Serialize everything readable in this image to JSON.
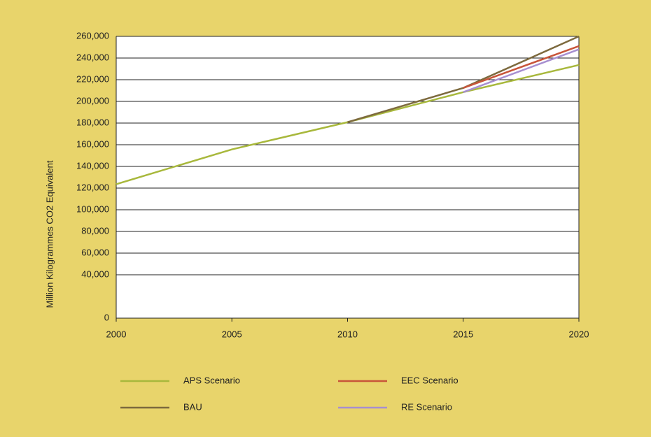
{
  "chart_data": {
    "type": "line",
    "y_label": "Million Kilogrammes CO2 Equivalent",
    "x": [
      2000,
      2005,
      2010,
      2015,
      2020
    ],
    "xlim": [
      2000,
      2020
    ],
    "xticks": [
      2000,
      2005,
      2010,
      2015,
      2020
    ],
    "ylim": [
      0,
      260000
    ],
    "yticks": [
      0,
      {
        "value": 40000,
        "label": "40,000"
      },
      {
        "value": 60000,
        "label": "60,000"
      },
      {
        "value": 80000,
        "label": "80,000"
      },
      {
        "value": 100000,
        "label": "100,000"
      },
      {
        "value": 120000,
        "label": "120,000"
      },
      {
        "value": 140000,
        "label": "140,000"
      },
      {
        "value": 160000,
        "label": "160,000"
      },
      {
        "value": 180000,
        "label": "180,000"
      },
      {
        "value": 200000,
        "label": "200,000"
      },
      {
        "value": 220000,
        "label": "220,000"
      },
      {
        "value": 240000,
        "label": "240,000"
      },
      {
        "value": 260000,
        "label": "260,000"
      }
    ],
    "grid": true,
    "legend": "bottom",
    "series": [
      {
        "name": "APS Scenario",
        "color": "#a8b83c",
        "values": [
          123600,
          155700,
          180800,
          208500,
          233600
        ]
      },
      {
        "name": "BAU",
        "color": "#7d6a3e",
        "values": [
          null,
          null,
          180800,
          212400,
          260000
        ]
      },
      {
        "name": "EEC Scenario",
        "color": "#c8553a",
        "values": [
          null,
          null,
          null,
          212400,
          251000
        ]
      },
      {
        "name": "RE Scenario",
        "color": "#a78fd0",
        "values": [
          null,
          null,
          null,
          208500,
          248000
        ]
      }
    ]
  }
}
